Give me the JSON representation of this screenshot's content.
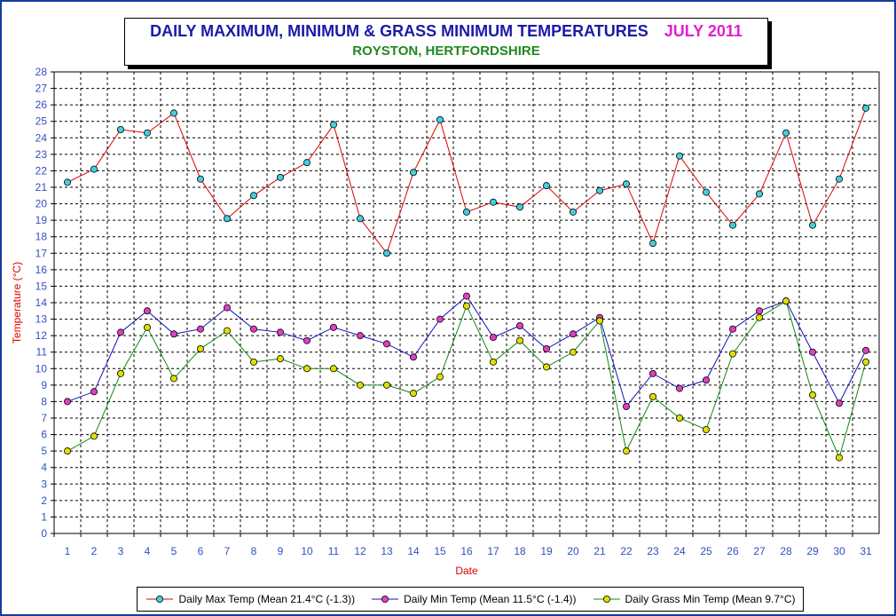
{
  "chart_data": {
    "type": "line",
    "title": "DAILY MAXIMUM, MINIMUM & GRASS MINIMUM TEMPERATURES",
    "title_month": "JULY 2011",
    "subtitle": "ROYSTON, HERTFORDSHIRE",
    "xlabel": "Date",
    "ylabel": "Temperature (°C)",
    "ylim": [
      0,
      28
    ],
    "yticks": [
      0,
      1,
      2,
      3,
      4,
      5,
      6,
      7,
      8,
      9,
      10,
      11,
      12,
      13,
      14,
      15,
      16,
      17,
      18,
      19,
      20,
      21,
      22,
      23,
      24,
      25,
      26,
      27,
      28
    ],
    "x": [
      1,
      2,
      3,
      4,
      5,
      6,
      7,
      8,
      9,
      10,
      11,
      12,
      13,
      14,
      15,
      16,
      17,
      18,
      19,
      20,
      21,
      22,
      23,
      24,
      25,
      26,
      27,
      28,
      29,
      30,
      31
    ],
    "grid": true,
    "legend_position": "bottom",
    "series": [
      {
        "name": "Daily Max Temp (Mean 21.4°C (-1.3))",
        "line_color": "#e00000",
        "marker_color": "#40d0e0",
        "values": [
          21.3,
          22.1,
          24.5,
          24.3,
          25.5,
          21.5,
          19.1,
          20.5,
          21.6,
          22.5,
          24.8,
          19.1,
          17.0,
          21.9,
          25.1,
          19.5,
          20.1,
          19.8,
          21.1,
          19.5,
          20.8,
          21.2,
          17.6,
          22.9,
          20.7,
          18.7,
          20.6,
          24.3,
          18.7,
          21.5,
          25.8
        ]
      },
      {
        "name": "Daily Min Temp (Mean 11.5°C (-1.4))",
        "line_color": "#1010c0",
        "marker_color": "#e040c0",
        "values": [
          8.0,
          8.6,
          12.2,
          13.5,
          12.1,
          12.4,
          13.7,
          12.4,
          12.2,
          11.7,
          12.5,
          12.0,
          11.5,
          10.7,
          13.0,
          14.4,
          11.9,
          12.6,
          11.2,
          12.1,
          13.1,
          7.7,
          9.7,
          8.8,
          9.3,
          12.4,
          13.5,
          14.1,
          11.0,
          7.9,
          11.1
        ]
      },
      {
        "name": "Daily Grass Min Temp (Mean 9.7°C)",
        "line_color": "#108a10",
        "marker_color": "#e0e000",
        "values": [
          5.0,
          5.9,
          9.7,
          12.5,
          9.4,
          11.2,
          12.3,
          10.4,
          10.6,
          10.0,
          10.0,
          9.0,
          9.0,
          8.5,
          9.5,
          13.8,
          10.4,
          11.7,
          10.1,
          11.0,
          12.9,
          5.0,
          8.3,
          7.0,
          6.3,
          10.9,
          13.1,
          14.1,
          8.4,
          4.6,
          10.4
        ]
      }
    ]
  },
  "colors": {
    "frame_border": "#1a3aa0",
    "axis_text": "#3050c0",
    "axis_label": "#e00000",
    "grid": "#000000"
  }
}
